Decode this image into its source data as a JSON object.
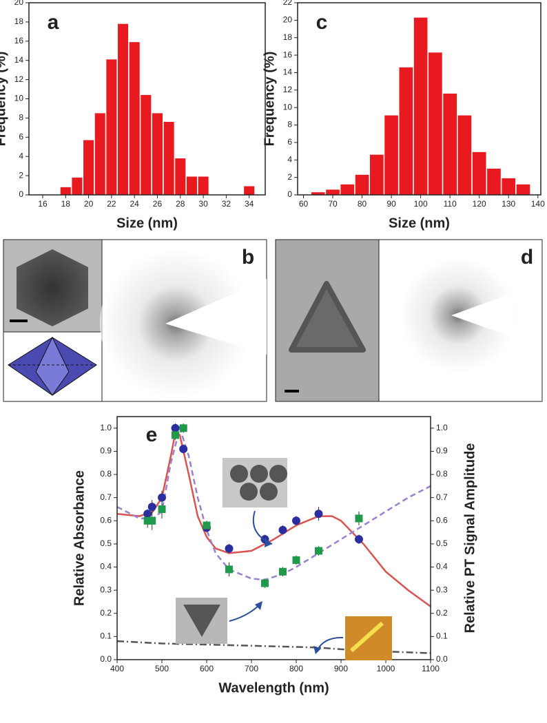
{
  "chart_data": [
    {
      "type": "histogram",
      "panel_label": "a",
      "xlabel": "Size (nm)",
      "ylabel": "Frequency (%)",
      "color": "#e8191f",
      "bins": [
        17.5,
        18.5,
        19.5,
        20.5,
        21.5,
        22.5,
        23.5,
        24.5,
        25.5,
        26.5,
        27.5,
        28.5,
        29.5,
        30.5,
        31.5,
        32.5,
        33.5,
        34.5
      ],
      "values": [
        0.8,
        1.8,
        5.7,
        8.5,
        14.1,
        17.8,
        15.9,
        10.4,
        8.5,
        7.6,
        3.8,
        1.9,
        1.9,
        0,
        0,
        0,
        0.9
      ],
      "xlim": [
        14.8,
        35.4
      ],
      "xticks": [
        16,
        18,
        20,
        22,
        24,
        26,
        28,
        30,
        32,
        34
      ],
      "ylim": [
        0,
        20
      ],
      "yticks": [
        0,
        2,
        4,
        6,
        8,
        10,
        12,
        14,
        16,
        18,
        20
      ]
    },
    {
      "type": "histogram",
      "panel_label": "c",
      "xlabel": "Size (nm)",
      "ylabel": "Frequency (%)",
      "color": "#e8191f",
      "bins": [
        62.5,
        67.5,
        72.5,
        77.5,
        82.5,
        87.5,
        92.5,
        97.5,
        102.5,
        107.5,
        112.5,
        117.5,
        122.5,
        127.5,
        132.5,
        137.5
      ],
      "values": [
        0.3,
        0.6,
        1.2,
        2.3,
        4.6,
        9.1,
        14.6,
        20.3,
        16.3,
        11.6,
        9.1,
        4.9,
        3.0,
        1.9,
        1.2
      ],
      "xlim": [
        58,
        141
      ],
      "xticks": [
        60,
        70,
        80,
        90,
        100,
        110,
        120,
        130,
        140
      ],
      "ylim": [
        0,
        22
      ],
      "yticks": [
        0,
        2,
        4,
        6,
        8,
        10,
        12,
        14,
        16,
        18,
        20,
        22
      ]
    },
    {
      "type": "line",
      "panel_label": "e",
      "xlabel": "Wavelength (nm)",
      "ylabel": "Relative Absorbance",
      "y2label": "Relative PT Signal Amplitude",
      "xlim": [
        400,
        1100
      ],
      "xticks": [
        400,
        500,
        600,
        700,
        800,
        900,
        1000,
        1100
      ],
      "ylim": [
        0,
        1.05
      ],
      "yticks": [
        {
          "value": 0,
          "label": "0.0"
        },
        0.1,
        0.2,
        0.3,
        0.4,
        0.5,
        0.6,
        0.7,
        0.8,
        0.9,
        {
          "value": 1,
          "label": "1.0"
        }
      ],
      "y2lim": [
        0,
        1.05
      ],
      "y2ticks": [
        {
          "value": 0,
          "label": "0.0"
        },
        0.1,
        0.2,
        0.3,
        0.4,
        0.5,
        0.6,
        0.7,
        0.8,
        0.9,
        {
          "value": 1,
          "label": "1.0"
        }
      ],
      "series": [
        {
          "mode": "line",
          "dash": "solid",
          "color": "#d9534f",
          "x": [
            400,
            450,
            480,
            500,
            520,
            530,
            540,
            560,
            580,
            600,
            620,
            650,
            700,
            750,
            800,
            850,
            880,
            900,
            950,
            1000,
            1050,
            1100
          ],
          "values": [
            0.63,
            0.62,
            0.64,
            0.7,
            0.88,
            0.98,
            0.97,
            0.8,
            0.62,
            0.53,
            0.48,
            0.46,
            0.47,
            0.52,
            0.58,
            0.62,
            0.62,
            0.6,
            0.5,
            0.38,
            0.3,
            0.23
          ]
        },
        {
          "mode": "line",
          "dash": "dashed",
          "color": "#9b7fd0",
          "x": [
            400,
            450,
            480,
            500,
            520,
            540,
            560,
            580,
            600,
            620,
            650,
            700,
            730,
            770,
            800,
            850,
            900,
            950,
            1000,
            1050,
            1100
          ],
          "values": [
            0.66,
            0.61,
            0.61,
            0.64,
            0.85,
            1.0,
            0.88,
            0.7,
            0.56,
            0.46,
            0.39,
            0.35,
            0.345,
            0.37,
            0.4,
            0.46,
            0.52,
            0.58,
            0.64,
            0.7,
            0.75
          ]
        },
        {
          "mode": "line",
          "dash": "dashdot",
          "color": "#555555",
          "x": [
            400,
            500,
            600,
            700,
            800,
            850,
            900,
            1000,
            1100
          ],
          "values": [
            0.08,
            0.07,
            0.065,
            0.06,
            0.055,
            0.052,
            0.045,
            0.035,
            0.028
          ]
        },
        {
          "mode": "markers",
          "marker": "circle",
          "color": "#2b2e9e",
          "axis": "y2",
          "x": [
            468,
            478,
            500,
            530,
            548,
            600,
            650,
            730,
            770,
            800,
            850,
            940
          ],
          "values": [
            0.63,
            0.66,
            0.7,
            1.0,
            0.91,
            0.57,
            0.48,
            0.52,
            0.56,
            0.6,
            0.63,
            0.52
          ],
          "errors": [
            0.02,
            0.03,
            0.03,
            0.02,
            0.02,
            0.02,
            0.02,
            0.02,
            0.02,
            0.02,
            0.03,
            0.02
          ]
        },
        {
          "mode": "markers",
          "marker": "square",
          "color": "#1e9a4a",
          "axis": "y2",
          "x": [
            468,
            478,
            500,
            530,
            548,
            600,
            650,
            730,
            770,
            800,
            850,
            940
          ],
          "values": [
            0.6,
            0.6,
            0.65,
            0.97,
            1.0,
            0.58,
            0.39,
            0.33,
            0.38,
            0.43,
            0.47,
            0.61
          ],
          "errors": [
            0.03,
            0.04,
            0.04,
            0.02,
            0.02,
            0.02,
            0.03,
            0.02,
            0.02,
            0.02,
            0.02,
            0.03
          ]
        }
      ]
    }
  ],
  "images": [
    {
      "label": "b"
    },
    {
      "label": "d"
    }
  ]
}
